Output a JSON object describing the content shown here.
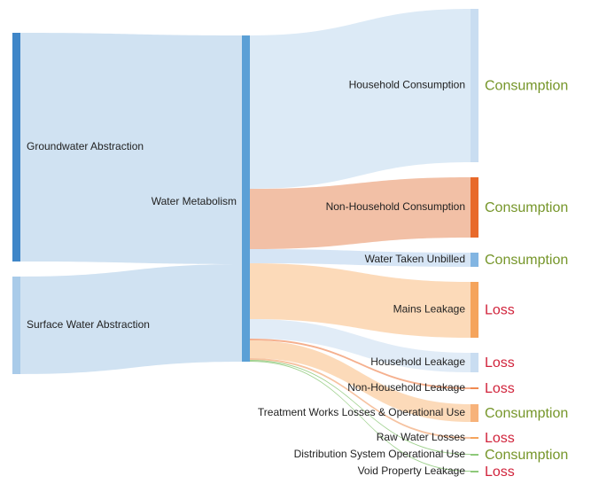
{
  "chart_data": {
    "type": "sankey",
    "nodes": [
      {
        "name": "Groundwater Abstraction",
        "color": "#3f86c8"
      },
      {
        "name": "Surface Water Abstraction",
        "color": "#a9cbe9"
      },
      {
        "name": "Water Metabolism",
        "color": "#5ba0d6"
      },
      {
        "name": "Household Consumption",
        "color": "#c9ddf1",
        "group": "Consumption",
        "group_color": "#76962a"
      },
      {
        "name": "Non-Household Consumption",
        "color": "#e8692a",
        "group": "Consumption",
        "group_color": "#76962a"
      },
      {
        "name": "Water Taken Unbilled",
        "color": "#82b5e2",
        "group": "Consumption",
        "group_color": "#76962a"
      },
      {
        "name": "Mains Leakage",
        "color": "#f5a45c",
        "group": "Loss",
        "group_color": "#d1243c"
      },
      {
        "name": "Household Leakage",
        "color": "#c9ddf1",
        "group": "Loss",
        "group_color": "#d1243c"
      },
      {
        "name": "Non-Household Leakage",
        "color": "#f08a50",
        "group": "Loss",
        "group_color": "#d1243c"
      },
      {
        "name": "Treatment Works Losses & Operational Use",
        "color": "#f7b27a",
        "group": "Consumption",
        "group_color": "#76962a"
      },
      {
        "name": "Raw Water Losses",
        "color": "#f5a45c",
        "group": "Loss",
        "group_color": "#d1243c"
      },
      {
        "name": "Distribution System Operational Use",
        "color": "#8ec97a",
        "group": "Consumption",
        "group_color": "#76962a"
      },
      {
        "name": "Void Property Leakage",
        "color": "#8ec97a",
        "group": "Loss",
        "group_color": "#d1243c"
      }
    ],
    "links": [
      {
        "source": 0,
        "target": 2,
        "value": 258,
        "color": "#c8ddf0"
      },
      {
        "source": 1,
        "target": 2,
        "value": 110,
        "color": "#c8ddf0"
      },
      {
        "source": 2,
        "target": 3,
        "value": 173,
        "color": "#d6e6f5"
      },
      {
        "source": 2,
        "target": 4,
        "value": 68,
        "color": "#f0b596"
      },
      {
        "source": 2,
        "target": 5,
        "value": 16,
        "color": "#cfe1f3"
      },
      {
        "source": 2,
        "target": 6,
        "value": 63,
        "color": "#fbd3ad"
      },
      {
        "source": 2,
        "target": 7,
        "value": 22,
        "color": "#dce9f6"
      },
      {
        "source": 2,
        "target": 8,
        "value": 2,
        "color": "#f3a27a"
      },
      {
        "source": 2,
        "target": 9,
        "value": 20,
        "color": "#fbd3ad"
      },
      {
        "source": 2,
        "target": 10,
        "value": 2,
        "color": "#f5b890"
      },
      {
        "source": 2,
        "target": 11,
        "value": 1,
        "color": "#8ec97a"
      },
      {
        "source": 2,
        "target": 12,
        "value": 1,
        "color": "#8ec97a"
      }
    ]
  }
}
